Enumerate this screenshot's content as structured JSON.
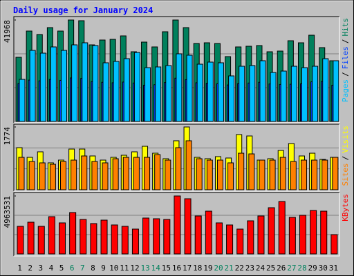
{
  "chart_data": [
    {
      "type": "bar",
      "title": "Daily usage for January 2024",
      "categories": [
        "1",
        "2",
        "3",
        "4",
        "5",
        "6",
        "7",
        "8",
        "9",
        "10",
        "11",
        "12",
        "13",
        "14",
        "15",
        "16",
        "17",
        "18",
        "19",
        "20",
        "21",
        "22",
        "23",
        "24",
        "25",
        "26",
        "27",
        "28",
        "29",
        "30",
        "31"
      ],
      "category_colors": [
        "#000000",
        "#000000",
        "#000000",
        "#000000",
        "#000000",
        "#00805c",
        "#00805c",
        "#000000",
        "#000000",
        "#000000",
        "#000000",
        "#000000",
        "#00805c",
        "#00805c",
        "#000000",
        "#000000",
        "#000000",
        "#000000",
        "#000000",
        "#00805c",
        "#00805c",
        "#000000",
        "#000000",
        "#000000",
        "#000000",
        "#000000",
        "#00805c",
        "#00805c",
        "#000000",
        "#000000",
        "#000000"
      ],
      "legend_separator": "/",
      "series": [
        {
          "name": "Hits",
          "color": "#00805c",
          "values": [
            26552,
            37400,
            35973,
            38828,
            37400,
            41968,
            41683,
            31690,
            33689,
            33974,
            35402,
            28835,
            32832,
            30834,
            37115,
            41968,
            38828,
            32261,
            32547,
            32261,
            26837,
            30834,
            31119,
            31405,
            28835,
            29121,
            33403,
            32547,
            35687,
            30548,
            25124
          ]
        },
        {
          "name": "Files",
          "color": "#0040ff",
          "values": [
            15700,
            17100,
            16800,
            17400,
            17000,
            18000,
            17800,
            16500,
            16200,
            16000,
            16300,
            15900,
            15000,
            15200,
            16100,
            17900,
            17300,
            16000,
            15800,
            15600,
            15100,
            15700,
            15900,
            16200,
            15500,
            15300,
            15400,
            15600,
            16400,
            16600,
            15000
          ]
        },
        {
          "name": "Pages",
          "color": "#00c0ff",
          "values": [
            17415,
            29406,
            28264,
            30834,
            29406,
            31690,
            32547,
            31405,
            24267,
            24838,
            25980,
            28550,
            22269,
            22554,
            23125,
            27979,
            27408,
            23696,
            24553,
            24267,
            18843,
            22840,
            23125,
            25124,
            20270,
            20841,
            22840,
            22269,
            22840,
            25980,
            25124
          ]
        }
      ],
      "ylim": [
        0,
        41968
      ],
      "yticks": [
        41968
      ]
    },
    {
      "type": "bar",
      "legend_separator": "/",
      "series": [
        {
          "name": "Visits",
          "color": "#ffff00",
          "values": [
            1189,
            916,
            1072,
            760,
            838,
            1150,
            1150,
            955,
            838,
            916,
            975,
            1072,
            1228,
            1033,
            877,
            1384,
            1774,
            916,
            877,
            936,
            897,
            1559,
            1520,
            838,
            877,
            1111,
            1306,
            955,
            1033,
            858,
            916
          ]
        },
        {
          "name": "Sites",
          "color": "#ff8000",
          "values": [
            916,
            799,
            760,
            721,
            799,
            838,
            955,
            799,
            760,
            877,
            916,
            916,
            916,
            994,
            838,
            1189,
            1384,
            877,
            838,
            838,
            760,
            1033,
            1013,
            838,
            838,
            916,
            799,
            838,
            838,
            838,
            916
          ]
        }
      ],
      "ylim": [
        0,
        1774
      ],
      "yticks": [
        1774
      ]
    },
    {
      "type": "bar",
      "series": [
        {
          "name": "KBytes",
          "color": "#ff0000",
          "values": [
            2363600,
            2718140,
            2363600,
            3190860,
            2659050,
            3545400,
            2954500,
            2599960,
            2895410,
            2481780,
            2363600,
            2127240,
            3072680,
            3013590,
            2954500,
            4963531,
            4727200,
            3249950,
            3663580,
            2659050,
            2481780,
            2127240,
            2836320,
            3249950,
            3959030,
            4490840,
            3131770,
            3309040,
            3722670,
            3663580,
            1654520
          ]
        }
      ],
      "ylim": [
        0,
        4963531
      ],
      "yticks": [
        4963531
      ]
    }
  ]
}
